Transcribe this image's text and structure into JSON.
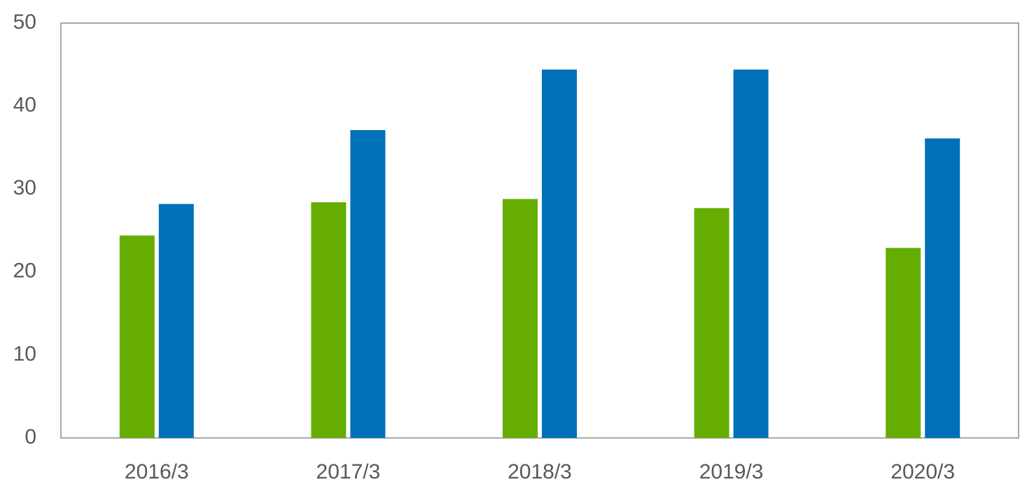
{
  "chart_data": {
    "type": "bar",
    "categories": [
      "2016/3",
      "2017/3",
      "2018/3",
      "2019/3",
      "2020/3"
    ],
    "series": [
      {
        "color": "#65ad00",
        "values": [
          24.4,
          28.4,
          28.8,
          27.7,
          22.9
        ]
      },
      {
        "color": "#0070b8",
        "values": [
          28.2,
          37.1,
          44.4,
          44.4,
          36.1
        ]
      }
    ],
    "ylim": [
      0,
      50
    ],
    "yticks": [
      0,
      10,
      20,
      30,
      40,
      50
    ],
    "grid": false
  }
}
